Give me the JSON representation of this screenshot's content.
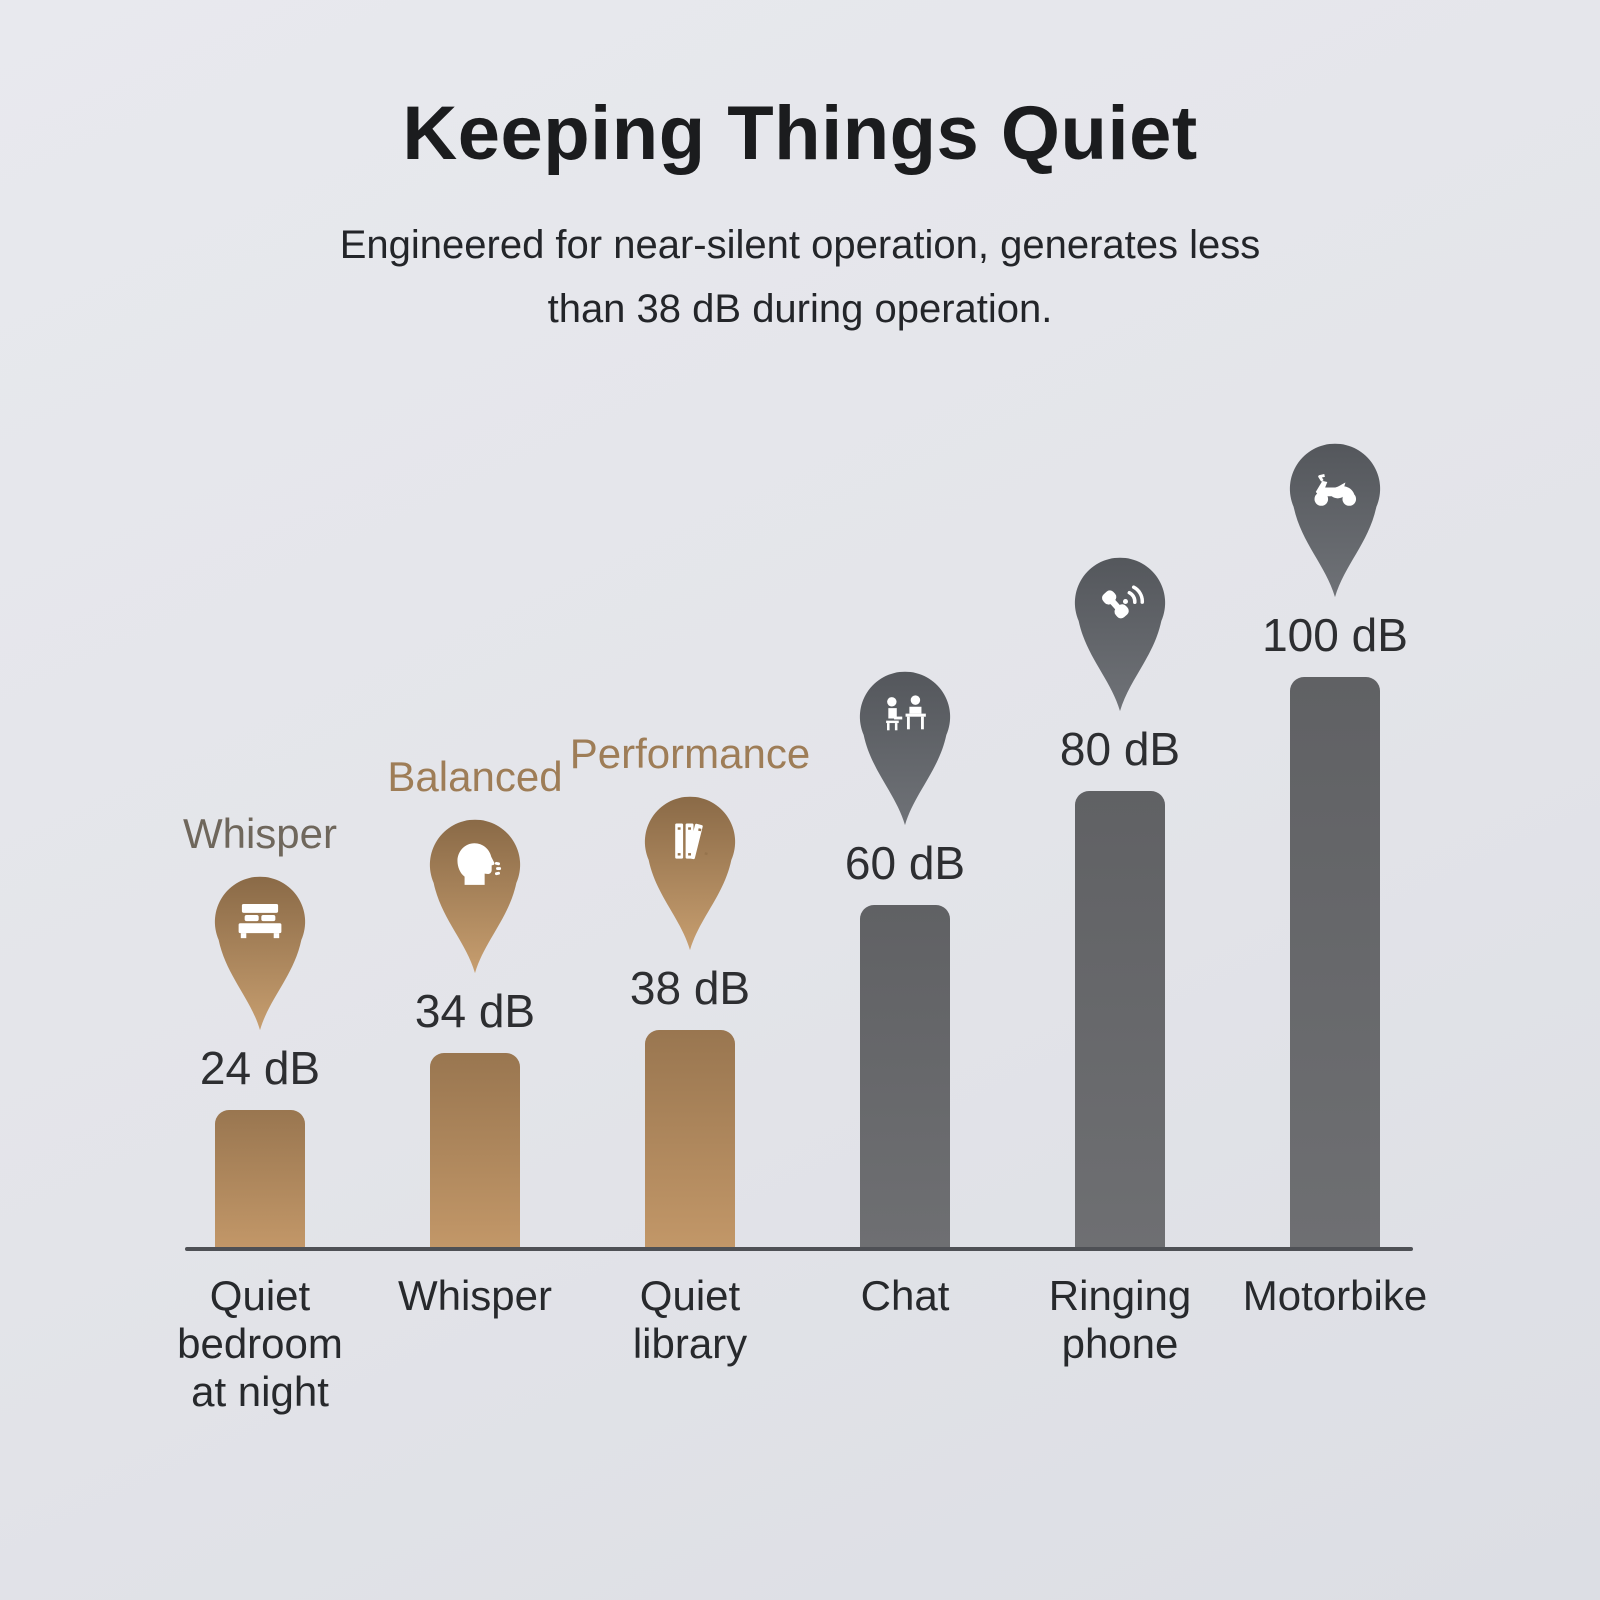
{
  "header": {
    "title": "Keeping Things Quiet",
    "subtitle_line1": "Engineered for near-silent operation, generates less",
    "subtitle_line2": "than 38 dB during operation."
  },
  "colors": {
    "background": "#e3e4e9",
    "pin_bronze_top": "#8a6a47",
    "pin_bronze_bottom": "#c79e6f",
    "pin_gray_top": "#54575c",
    "pin_gray_bottom": "#6f7277",
    "bar_bronze_top": "#997650",
    "bar_bronze_bottom": "#c29768",
    "bar_gray_top": "#606164",
    "bar_gray_bottom": "#6e6f72",
    "axis": "#4e5055",
    "mode_label_bronze": "#9e7d57",
    "mode_label_whisper": "#6f675c",
    "text_dark": "#2d2e31"
  },
  "chart_data": {
    "type": "bar",
    "title": "Keeping Things Quiet",
    "unit": "dB",
    "ylim": [
      0,
      110
    ],
    "grid": false,
    "legend": "none",
    "categories": [
      "Quiet bedroom at night",
      "Whisper",
      "Quiet library",
      "Chat",
      "Ringing phone",
      "Motorbike"
    ],
    "values": [
      24,
      34,
      38,
      60,
      80,
      100
    ],
    "annotations": [
      "Whisper",
      "Balanced",
      "Performance"
    ],
    "columns": [
      {
        "category": "Quiet bedroom at night",
        "category_lines": [
          "Quiet",
          "bedroom",
          "at night"
        ],
        "value": 24,
        "value_label": "24 dB",
        "mode_label": "Whisper",
        "mode_label_color": "#6f675c",
        "icon": "bed",
        "theme": "bronze"
      },
      {
        "category": "Whisper",
        "category_lines": [
          "Whisper"
        ],
        "value": 34,
        "value_label": "34 dB",
        "mode_label": "Balanced",
        "mode_label_color": "#9e7d57",
        "icon": "speaking-head",
        "theme": "bronze"
      },
      {
        "category": "Quiet library",
        "category_lines": [
          "Quiet",
          "library"
        ],
        "value": 38,
        "value_label": "38 dB",
        "mode_label": "Performance",
        "mode_label_color": "#9e7d57",
        "icon": "library-books",
        "theme": "bronze"
      },
      {
        "category": "Chat",
        "category_lines": [
          "Chat"
        ],
        "value": 60,
        "value_label": "60 dB",
        "mode_label": null,
        "mode_label_color": null,
        "icon": "people-chatting",
        "theme": "gray"
      },
      {
        "category": "Ringing phone",
        "category_lines": [
          "Ringing",
          "phone"
        ],
        "value": 80,
        "value_label": "80 dB",
        "mode_label": null,
        "mode_label_color": null,
        "icon": "ringing-phone",
        "theme": "gray"
      },
      {
        "category": "Motorbike",
        "category_lines": [
          "Motorbike"
        ],
        "value": 100,
        "value_label": "100 dB",
        "mode_label": null,
        "mode_label_color": null,
        "icon": "motorbike",
        "theme": "gray"
      }
    ]
  }
}
